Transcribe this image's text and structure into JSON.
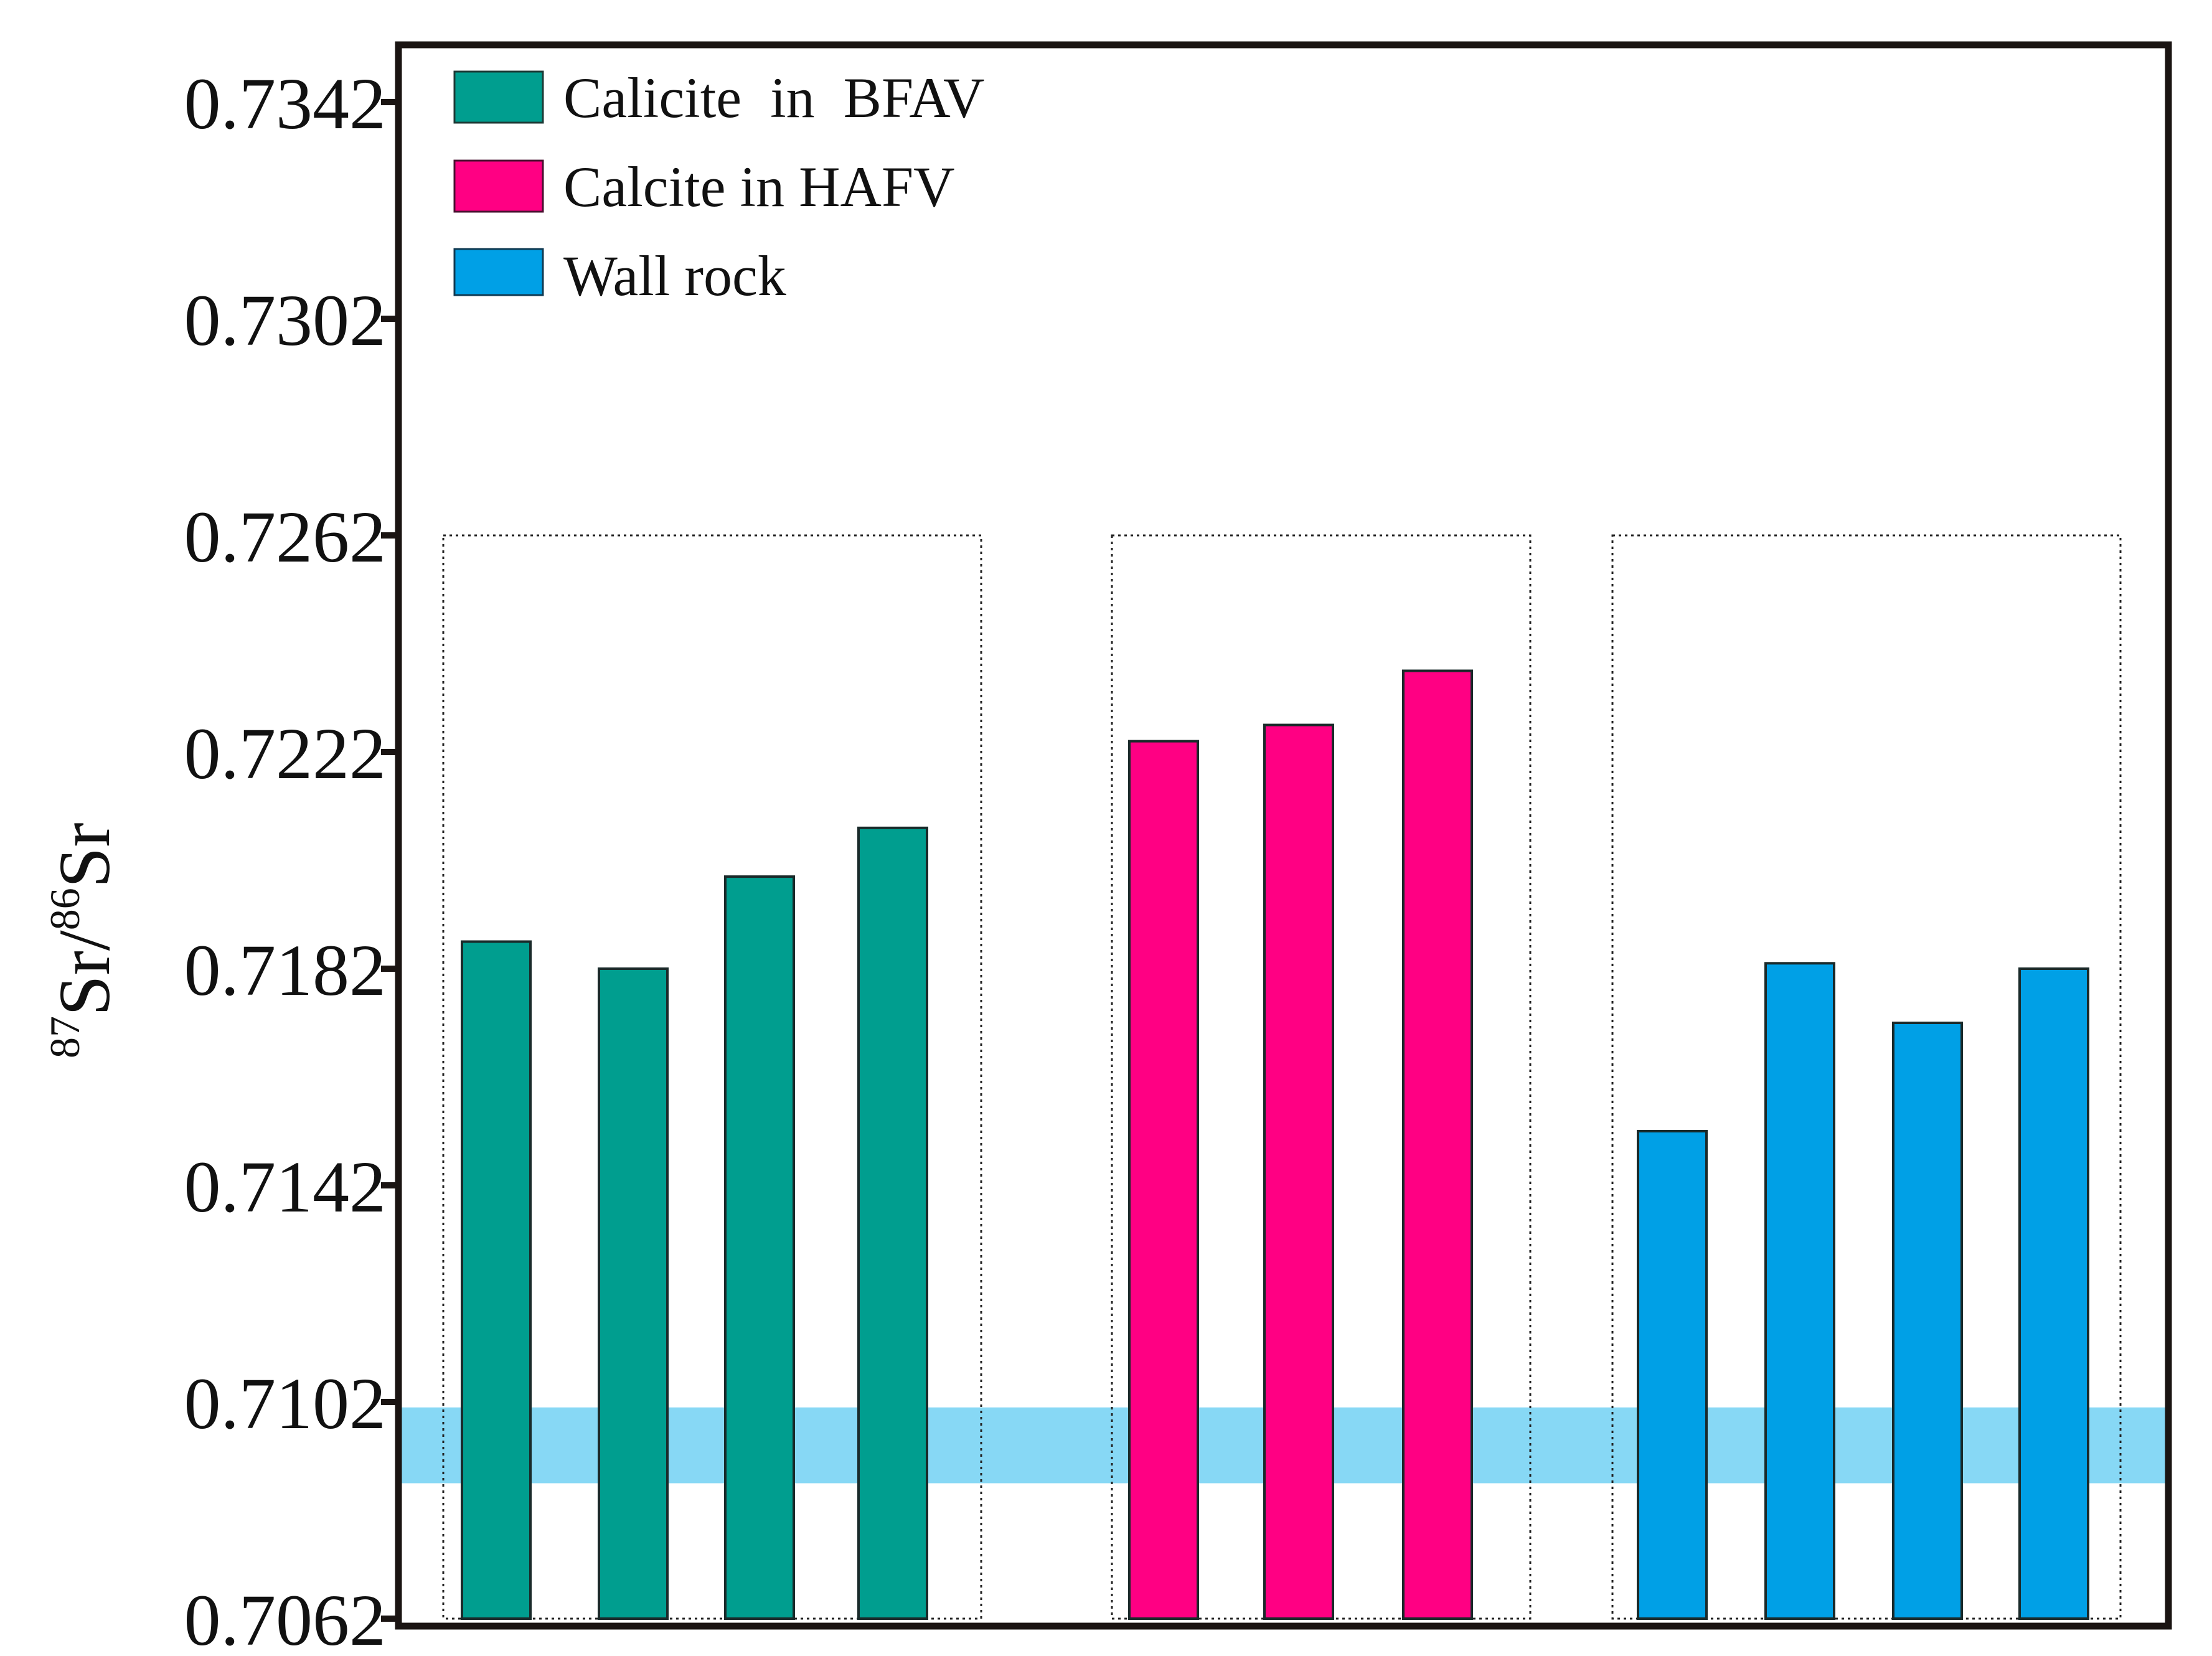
{
  "chart_data": {
    "type": "bar",
    "title": "",
    "xlabel": "",
    "ylabel": {
      "iso_a": "87",
      "el_a": "Sr",
      "slash": "/",
      "iso_b": "86",
      "el_b": "Sr"
    },
    "ylim": [
      0.7062,
      0.7362
    ],
    "yticks": [
      "0.7062",
      "0.7102",
      "0.7142",
      "0.7182",
      "0.7222",
      "0.7262",
      "0.7302",
      "0.7342"
    ],
    "grid": false,
    "legend_position": "top-left",
    "series": [
      {
        "name": "Calicite  in  BFAV",
        "color": "#009e8f",
        "values": [
          0.7187,
          0.7182,
          0.7199,
          0.7208
        ]
      },
      {
        "name": "Calcite in HAFV",
        "color": "#ff0083",
        "values": [
          0.7224,
          0.7227,
          0.7237
        ]
      },
      {
        "name": "Wall rock",
        "color": "#00a0e6",
        "values": [
          0.7152,
          0.7183,
          0.7172,
          0.7182
        ]
      }
    ],
    "reference_band": {
      "color": "#87d8f5",
      "range": [
        0.7087,
        0.7101
      ]
    },
    "group_box_top": 0.7262
  }
}
